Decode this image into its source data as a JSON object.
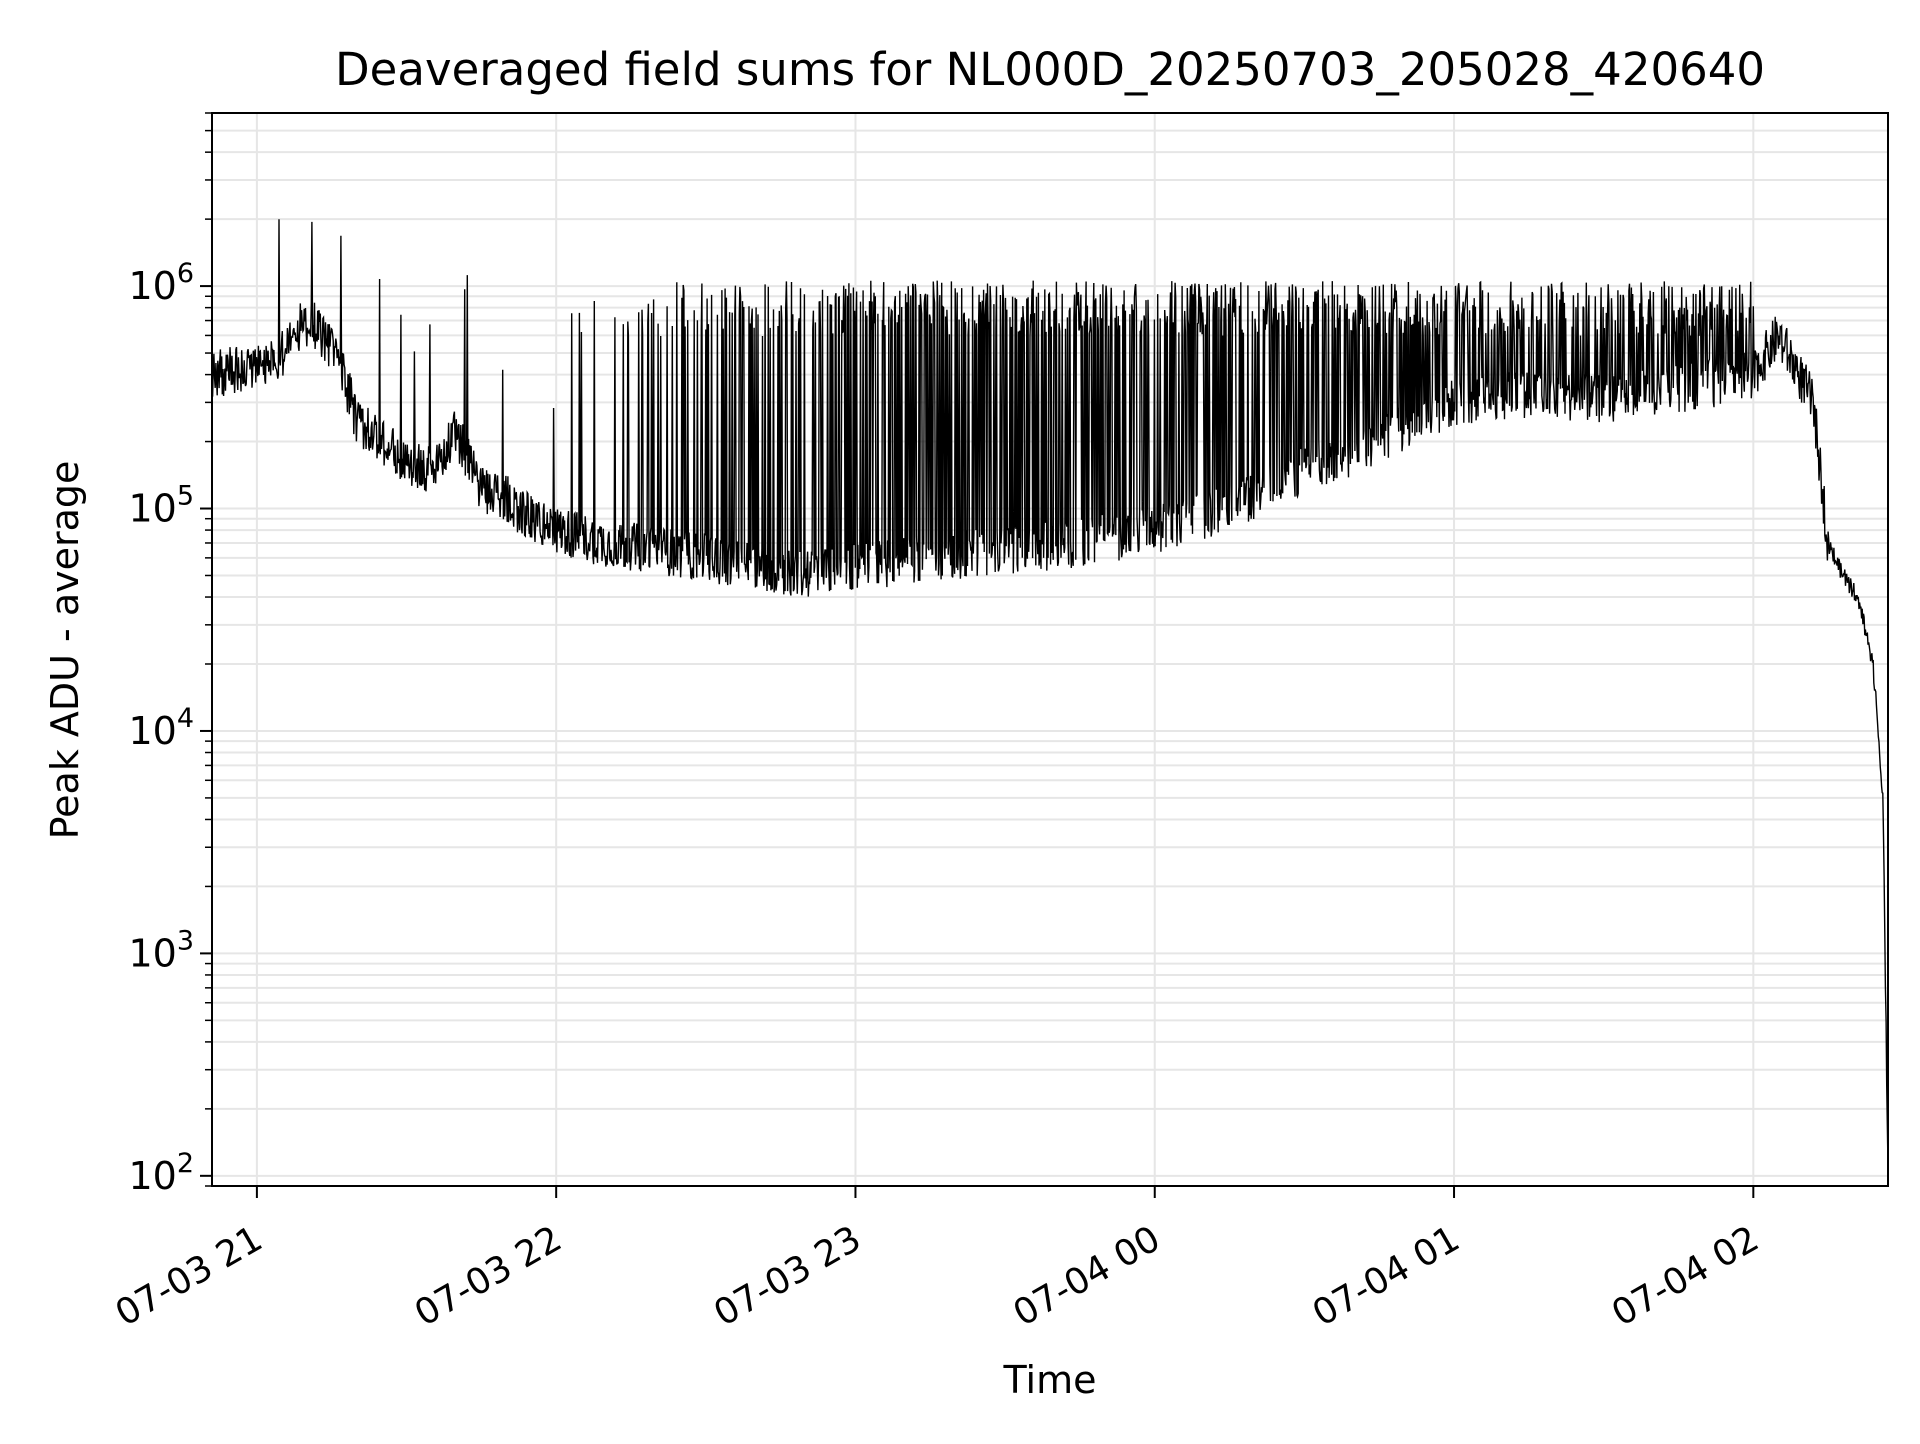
{
  "chart_data": {
    "type": "line",
    "title": "Deaveraged field sums for NL000D_20250703_205028_420640",
    "xlabel": "Time",
    "ylabel": "Peak ADU - average",
    "yscale": "log",
    "ylim": [
      90,
      6000000
    ],
    "xlim": [
      "2025-07-03 20:51",
      "2025-07-04 02:27"
    ],
    "grid": true,
    "grid_minor": true,
    "line_color": "#000000",
    "grid_color": "#e6e6e6",
    "x_ticks": [
      {
        "t": "2025-07-03 21:00",
        "label": "07-03 21"
      },
      {
        "t": "2025-07-03 22:00",
        "label": "07-03 22"
      },
      {
        "t": "2025-07-03 23:00",
        "label": "07-03 23"
      },
      {
        "t": "2025-07-04 00:00",
        "label": "07-04 00"
      },
      {
        "t": "2025-07-04 01:00",
        "label": "07-04 01"
      },
      {
        "t": "2025-07-04 02:00",
        "label": "07-04 02"
      }
    ],
    "y_ticks": [
      {
        "v": 100,
        "base": "10",
        "exp": "2"
      },
      {
        "v": 1000,
        "base": "10",
        "exp": "3"
      },
      {
        "v": 10000,
        "base": "10",
        "exp": "4"
      },
      {
        "v": 100000,
        "base": "10",
        "exp": "5"
      },
      {
        "v": 1000000,
        "base": "10",
        "exp": "6"
      }
    ],
    "series": [
      {
        "x": [
          "2025-07-03 20:51",
          "2025-07-03 20:55",
          "2025-07-03 21:00",
          "2025-07-03 21:05",
          "2025-07-03 21:08",
          "2025-07-03 21:11",
          "2025-07-03 21:13",
          "2025-07-03 21:16",
          "2025-07-03 21:20",
          "2025-07-03 21:25",
          "2025-07-03 21:30",
          "2025-07-03 21:35",
          "2025-07-03 21:40",
          "2025-07-03 21:45",
          "2025-07-03 21:50",
          "2025-07-03 21:55",
          "2025-07-03 22:00",
          "2025-07-03 22:10",
          "2025-07-03 22:20",
          "2025-07-03 22:30",
          "2025-07-03 22:40",
          "2025-07-03 22:50",
          "2025-07-03 23:00",
          "2025-07-03 23:15",
          "2025-07-03 23:30",
          "2025-07-03 23:45",
          "2025-07-04 00:00",
          "2025-07-04 00:15",
          "2025-07-04 00:30",
          "2025-07-04 00:45",
          "2025-07-04 01:00",
          "2025-07-04 01:15",
          "2025-07-04 01:30",
          "2025-07-04 01:45",
          "2025-07-04 02:00",
          "2025-07-04 02:05",
          "2025-07-04 02:08",
          "2025-07-04 02:12",
          "2025-07-04 02:15",
          "2025-07-04 02:18",
          "2025-07-04 02:21",
          "2025-07-04 02:24",
          "2025-07-04 02:26",
          "2025-07-04 02:27"
        ],
        "y": [
          400000,
          420000,
          450000,
          500000,
          650000,
          700000,
          600000,
          500000,
          250000,
          200000,
          160000,
          150000,
          220000,
          120000,
          110000,
          90000,
          80000,
          70000,
          65000,
          60000,
          55000,
          50000,
          55000,
          60000,
          65000,
          70000,
          80000,
          100000,
          150000,
          200000,
          300000,
          330000,
          310000,
          340000,
          400000,
          600000,
          450000,
          300000,
          70000,
          50000,
          40000,
          20000,
          5000,
          100
        ]
      }
    ]
  }
}
